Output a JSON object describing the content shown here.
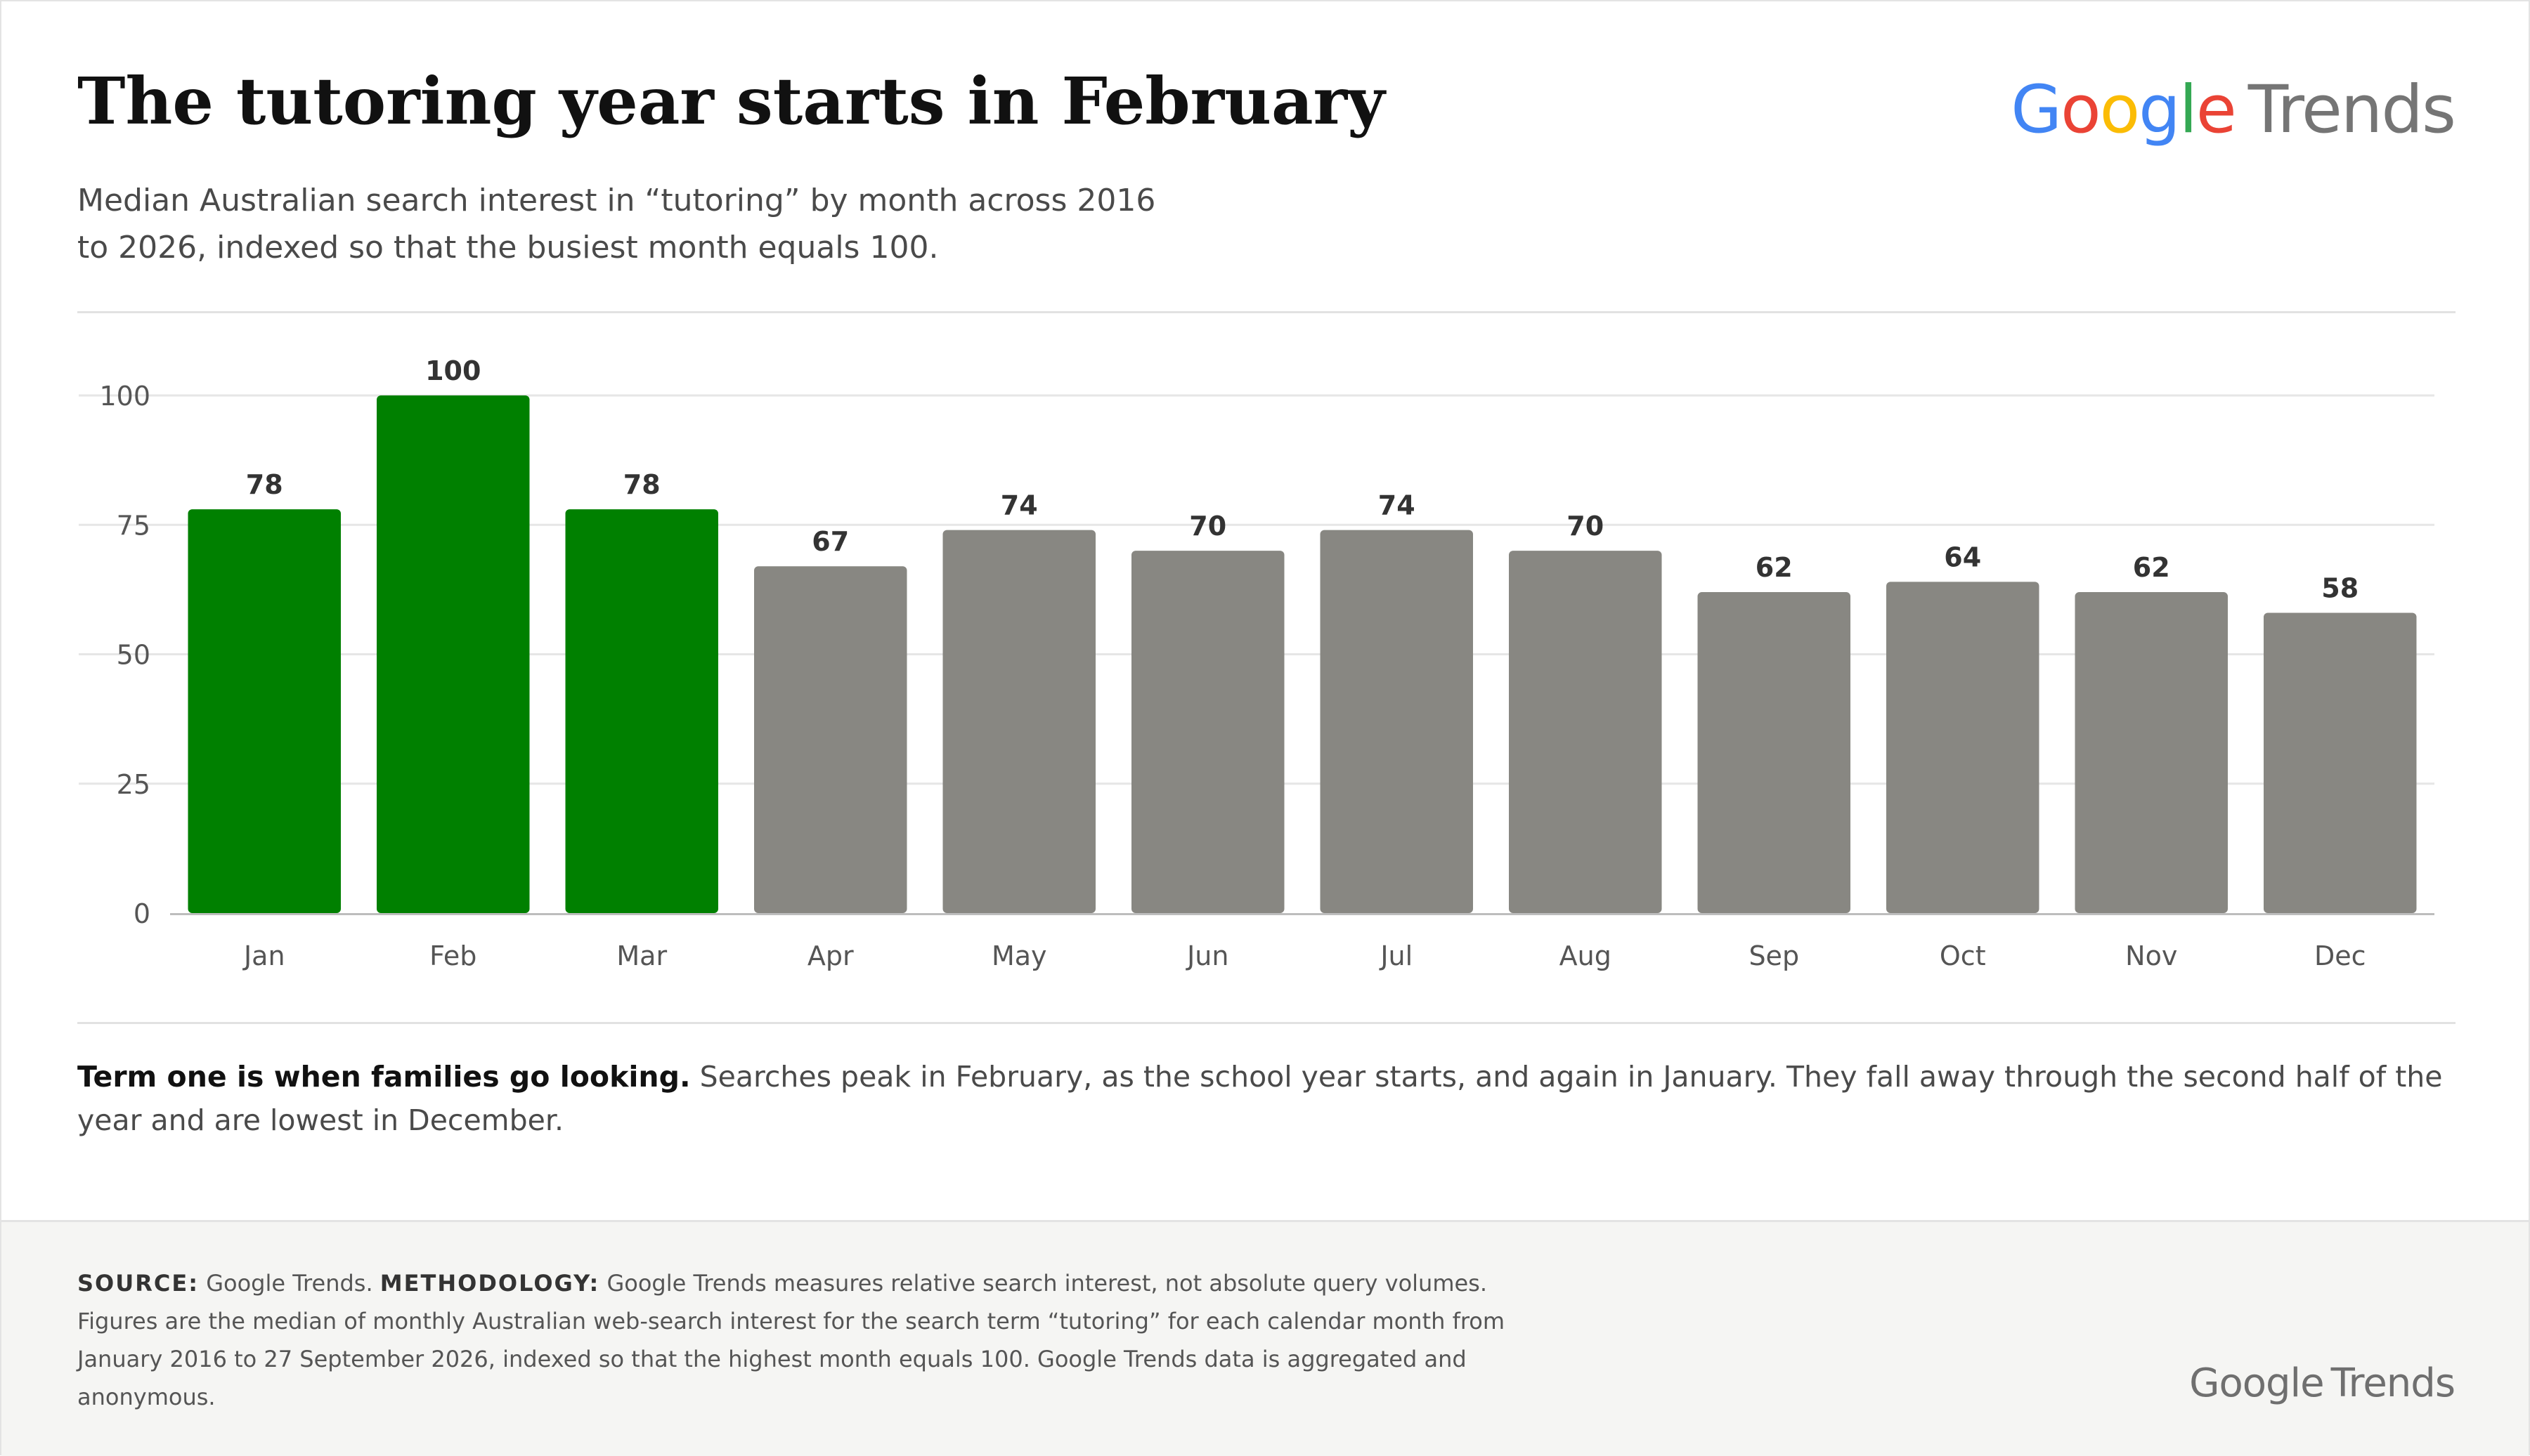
{
  "header": {
    "title": "The tutoring year starts in February",
    "subtitle": "Median Australian search interest in “tutoring” by month across 2016 to 2026, indexed so that the busiest month equals 100."
  },
  "logo": {
    "brand_letters": [
      "G",
      "o",
      "o",
      "g",
      "l",
      "e"
    ],
    "product": "Trends"
  },
  "chart_data": {
    "type": "bar",
    "categories": [
      "Jan",
      "Feb",
      "Mar",
      "Apr",
      "May",
      "Jun",
      "Jul",
      "Aug",
      "Sep",
      "Oct",
      "Nov",
      "Dec"
    ],
    "values": [
      78,
      100,
      78,
      67,
      74,
      70,
      74,
      70,
      62,
      64,
      62,
      58
    ],
    "highlighted": [
      true,
      true,
      true,
      false,
      false,
      false,
      false,
      false,
      false,
      false,
      false,
      false
    ],
    "y_ticks": [
      0,
      25,
      50,
      75,
      100
    ],
    "ylim": [
      0,
      100
    ],
    "grid": true,
    "data_labels": true,
    "colors": {
      "highlight": "#008000",
      "base": "#888782",
      "grid": "#e6e6e6",
      "axis": "#bdbdbd"
    }
  },
  "caption": {
    "lead": "Term one is when families go looking.",
    "body": " Searches peak in February, as the school year starts, and again in January. They fall away through the second half of the year and are lowest in December."
  },
  "footer": {
    "source_label": "SOURCE:",
    "source_text": " Google Trends. ",
    "methodology_label": "METHODOLOGY:",
    "methodology_text": " Google Trends measures relative search interest, not absolute query volumes. Figures are the median of monthly Australian web-search interest for the search term “tutoring” for each calendar month from January 2016 to 27 September 2026, indexed so that the highest month equals 100. Google Trends data is aggregated and anonymous."
  }
}
